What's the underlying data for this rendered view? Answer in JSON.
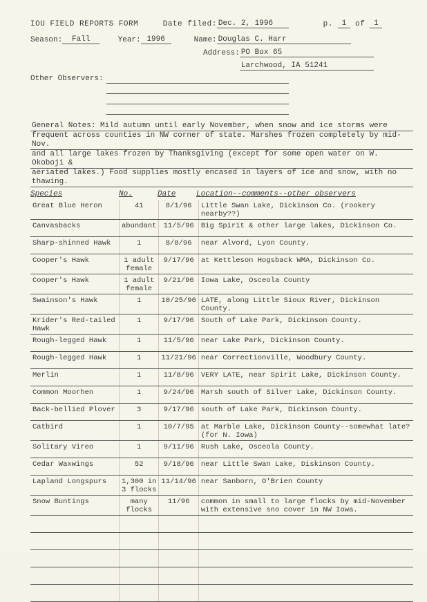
{
  "header": {
    "form_title": "IOU FIELD REPORTS FORM",
    "date_filed_label": "Date filed:",
    "date_filed": "Dec. 2, 1996",
    "page_label_prefix": "p. ",
    "page_current": "1",
    "page_label_mid": " of ",
    "page_total": "1",
    "season_label": "Season:",
    "season": "Fall",
    "year_label": "Year:",
    "year": "1996",
    "name_label": "Name:",
    "name": "Douglas C. Harr",
    "address_label": "Address:",
    "address_line1": "PO Box 65",
    "address_line2": "Larchwood, IA 51241",
    "other_obs_label": "Other Observers:"
  },
  "notes": {
    "label": "General Notes:",
    "line1": "Mild autumn until early November, when snow and ice storms were",
    "line2": "frequent across counties in NW corner of state.  Marshes frozen completely by mid-Nov.",
    "line3": "and all large lakes frozen by Thanksgiving (except for some open water on W. Okoboji &",
    "line4": "aeriated lakes.) Food supplies mostly encased in layers of ice and snow, with no thawing."
  },
  "columns": {
    "species": "Species",
    "no": "No.",
    "date": "Date",
    "loc": "Location--comments--other observers"
  },
  "rows": [
    {
      "species": "Great Blue Heron",
      "no": "41",
      "date": "8/1/96",
      "loc": "Little Swan Lake, Dickinson Co. (rookery nearby??)"
    },
    {
      "species": "Canvasbacks",
      "no": "abundant",
      "date": "11/5/96",
      "loc": "Big Spirit & other large lakes, Dickinson Co."
    },
    {
      "species": "Sharp-shinned Hawk",
      "no": "1",
      "date": "8/8/96",
      "loc": "near Alvord, Lyon County."
    },
    {
      "species": "Cooper's Hawk",
      "no": "1 adult female",
      "date": "9/17/96",
      "loc": "at Kettleson Hogsback WMA, Dickinson Co."
    },
    {
      "species": "Cooper's Hawk",
      "no": "1 adult female",
      "date": "9/21/96",
      "loc": "Iowa Lake, Osceola County"
    },
    {
      "species": "Swainson's Hawk",
      "no": "1",
      "date": "10/25/96",
      "loc": "LATE, along Little Sioux River, Dickinson County."
    },
    {
      "species": "Krider's Red-tailed Hawk",
      "no": "1",
      "date": "9/17/96",
      "loc": "South of Lake Park, Dickinson County."
    },
    {
      "species": "Rough-legged Hawk",
      "no": "1",
      "date": "11/5/96",
      "loc": "near Lake Park, Dickinson County."
    },
    {
      "species": "Rough-legged Hawk",
      "no": "1",
      "date": "11/21/96",
      "loc": "near Correctionville, Woodbury County."
    },
    {
      "species": "Merlin",
      "no": "1",
      "date": "11/8/96",
      "loc": "VERY LATE, near Spirit Lake, Dickinson County."
    },
    {
      "species": "Common Moorhen",
      "no": "1",
      "date": "9/24/96",
      "loc": "Marsh south of Silver Lake, Dickinson County."
    },
    {
      "species": "Back-bellied Plover",
      "no": "3",
      "date": "9/17/96",
      "loc": "south of Lake Park, Dickinson County."
    },
    {
      "species": "Catbird",
      "no": "1",
      "date": "10/7/95",
      "loc": "at Marble Lake, Dickinson County--somewhat late? (for N. Iowa)"
    },
    {
      "species": "Solitary Vireo",
      "no": "1",
      "date": "9/11/96",
      "loc": "Rush Lake, Osceola County."
    },
    {
      "species": "Cedar Waxwings",
      "no": "52",
      "date": "9/18/96",
      "loc": "near Little Swan Lake, Diskinson County."
    },
    {
      "species": "Lapland Longspurs",
      "no": "1,300 in 3 flocks",
      "date": "11/14/96",
      "loc": "near Sanborn, O'Brien County"
    },
    {
      "species": "Snow Buntings",
      "no": "many flocks",
      "date": "11/96",
      "loc": "common in small to large flocks by mid-November with extensive sno cover in NW Iowa."
    }
  ],
  "empty_rows": 5
}
